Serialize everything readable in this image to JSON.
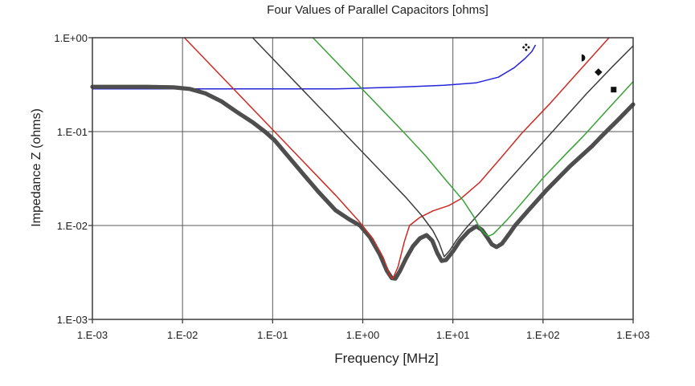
{
  "chart_data": {
    "type": "line",
    "title": "Four Values of Parallel Capacitors [ohms]",
    "xlabel": "Frequency [MHz]",
    "ylabel": "Impedance Z (ohms)",
    "x_scale": "log",
    "y_scale": "log",
    "xlim": [
      0.001,
      1000
    ],
    "ylim": [
      0.001,
      1
    ],
    "grid": true,
    "legend": "none",
    "x_tick_labels": [
      "1.E-03",
      "1.E-02",
      "1.E-01",
      "1.E+00",
      "1.E+01",
      "1.E+02",
      "1.E+03"
    ],
    "y_tick_labels": [
      "1.E+00",
      "1.E-01",
      "1.E-02",
      "1.E-03"
    ],
    "colors": {
      "grid": "#5a5a5a",
      "border": "#3c3c3c",
      "text": "#1f1f1f",
      "marker": "#111111"
    },
    "series": [
      {
        "name": "blue-flat-capacitor",
        "color": "#2424d8",
        "width": 1.5,
        "points": [
          [
            0.001,
            0.285
          ],
          [
            0.01,
            0.285
          ],
          [
            0.1,
            0.285
          ],
          [
            0.5,
            0.285
          ],
          [
            1,
            0.29
          ],
          [
            3,
            0.3
          ],
          [
            8,
            0.312
          ],
          [
            18,
            0.33
          ],
          [
            32,
            0.38
          ],
          [
            48,
            0.48
          ],
          [
            63,
            0.6
          ],
          [
            75,
            0.71
          ],
          [
            82,
            0.83
          ]
        ]
      },
      {
        "name": "gray-parallel-combination",
        "color": "#4e4e4e",
        "width": 5.2,
        "points": [
          [
            0.001,
            0.3
          ],
          [
            0.004,
            0.3
          ],
          [
            0.008,
            0.296
          ],
          [
            0.012,
            0.285
          ],
          [
            0.018,
            0.255
          ],
          [
            0.027,
            0.21
          ],
          [
            0.04,
            0.162
          ],
          [
            0.06,
            0.126
          ],
          [
            0.083,
            0.099
          ],
          [
            0.105,
            0.081
          ],
          [
            0.15,
            0.054
          ],
          [
            0.22,
            0.035
          ],
          [
            0.32,
            0.023
          ],
          [
            0.5,
            0.0145
          ],
          [
            0.7,
            0.0117
          ],
          [
            0.93,
            0.01
          ],
          [
            1.2,
            0.0075
          ],
          [
            1.55,
            0.0049
          ],
          [
            1.85,
            0.0033
          ],
          [
            2.1,
            0.00275
          ],
          [
            2.3,
            0.00272
          ],
          [
            2.6,
            0.0033
          ],
          [
            3.0,
            0.0044
          ],
          [
            3.6,
            0.006
          ],
          [
            4.3,
            0.0073
          ],
          [
            5.1,
            0.0079
          ],
          [
            5.9,
            0.0069
          ],
          [
            6.7,
            0.0051
          ],
          [
            7.5,
            0.0042
          ],
          [
            8.4,
            0.0043
          ],
          [
            10,
            0.0053
          ],
          [
            12,
            0.0069
          ],
          [
            15,
            0.0087
          ],
          [
            18.2,
            0.0098
          ],
          [
            21,
            0.009
          ],
          [
            24,
            0.0075
          ],
          [
            27,
            0.0063
          ],
          [
            30.5,
            0.0059
          ],
          [
            35,
            0.0064
          ],
          [
            42,
            0.0081
          ],
          [
            49,
            0.01
          ],
          [
            70,
            0.0148
          ],
          [
            110,
            0.024
          ],
          [
            200,
            0.043
          ],
          [
            350,
            0.07
          ],
          [
            440,
            0.088
          ],
          [
            700,
            0.137
          ],
          [
            1000,
            0.195
          ]
        ]
      },
      {
        "name": "red-capacitor",
        "color": "#cc2b24",
        "width": 1.5,
        "points": [
          [
            0.0105,
            1.0
          ],
          [
            0.105,
            0.1
          ],
          [
            0.5,
            0.021
          ],
          [
            0.9,
            0.0112
          ],
          [
            1.3,
            0.0072
          ],
          [
            1.7,
            0.0045
          ],
          [
            2.0,
            0.0029
          ],
          [
            2.15,
            0.0027
          ],
          [
            2.45,
            0.0036
          ],
          [
            2.9,
            0.0068
          ],
          [
            3.3,
            0.01
          ],
          [
            4.3,
            0.0122
          ],
          [
            6,
            0.0143
          ],
          [
            9,
            0.0163
          ],
          [
            12,
            0.019
          ],
          [
            20,
            0.029
          ],
          [
            35,
            0.054
          ],
          [
            58,
            0.096
          ],
          [
            120,
            0.2
          ],
          [
            250,
            0.44
          ],
          [
            540,
            1.0
          ]
        ]
      },
      {
        "name": "black-capacitor",
        "color": "#3d3d3d",
        "width": 1.5,
        "points": [
          [
            0.06,
            1.0
          ],
          [
            0.6,
            0.1
          ],
          [
            1.5,
            0.04
          ],
          [
            3,
            0.02
          ],
          [
            4.5,
            0.0128
          ],
          [
            6,
            0.0088
          ],
          [
            7,
            0.0066
          ],
          [
            8,
            0.00465
          ],
          [
            9.2,
            0.0054
          ],
          [
            11,
            0.007
          ],
          [
            13,
            0.0086
          ],
          [
            14.8,
            0.01
          ],
          [
            20,
            0.0137
          ],
          [
            40,
            0.029
          ],
          [
            80,
            0.061
          ],
          [
            125,
            0.098
          ],
          [
            300,
            0.25
          ],
          [
            600,
            0.5
          ],
          [
            1000,
            0.82
          ]
        ]
      },
      {
        "name": "green-capacitor",
        "color": "#38a038",
        "width": 1.5,
        "points": [
          [
            0.28,
            1.0
          ],
          [
            1.0,
            0.28
          ],
          [
            2.8,
            0.1
          ],
          [
            5,
            0.055
          ],
          [
            8,
            0.032
          ],
          [
            13,
            0.0185
          ],
          [
            17,
            0.0125
          ],
          [
            19.8,
            0.0095
          ],
          [
            22.5,
            0.0082
          ],
          [
            24.8,
            0.0077
          ],
          [
            28,
            0.0081
          ],
          [
            32,
            0.0092
          ],
          [
            40,
            0.0115
          ],
          [
            60,
            0.018
          ],
          [
            100,
            0.032
          ],
          [
            180,
            0.058
          ],
          [
            285,
            0.091
          ],
          [
            500,
            0.165
          ],
          [
            1000,
            0.34
          ]
        ]
      }
    ],
    "markers": [
      {
        "shape": "diamond-x",
        "f": 65,
        "z": 0.79
      },
      {
        "shape": "half-circle-right",
        "f": 268,
        "z": 0.61
      },
      {
        "shape": "diamond",
        "f": 412,
        "z": 0.43
      },
      {
        "shape": "square",
        "f": 608,
        "z": 0.28
      }
    ]
  }
}
